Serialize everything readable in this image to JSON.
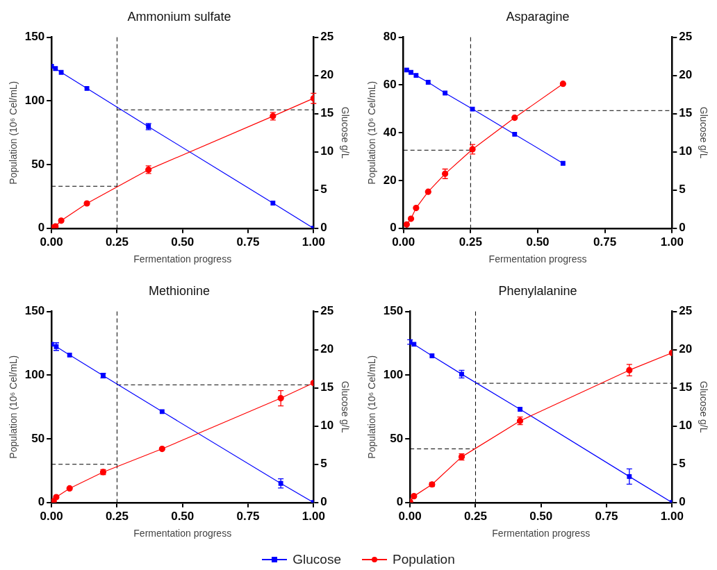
{
  "chart_data": [
    {
      "type": "line",
      "title": "Ammonium sulfate",
      "xlabel": "Fermentation progress",
      "ylabel": "Population (10⁶ Cel/mL)",
      "y2label": "Glucose g/L",
      "xlim": [
        0,
        1
      ],
      "xticks": [
        {
          "value": 0,
          "label": "0.00"
        },
        {
          "value": 0.25,
          "label": "0.25"
        },
        {
          "value": 0.5,
          "label": "0.50"
        },
        {
          "value": 0.75,
          "label": "0.75"
        },
        {
          "value": 1,
          "label": "1.00"
        }
      ],
      "ylim": [
        0,
        150
      ],
      "yticks": [
        0,
        50,
        100,
        150
      ],
      "y2lim": [
        0,
        25
      ],
      "y2ticks": [
        0,
        5,
        10,
        15,
        20,
        25
      ],
      "grid": false,
      "legend": "bottom",
      "series": [
        {
          "name": "Glucose",
          "color": "#0000ff",
          "axis": "y2",
          "marker": "square",
          "x": [
            0,
            0.015,
            0.037,
            0.135,
            0.37,
            0.845,
            1
          ],
          "values": [
            21.2,
            20.9,
            20.4,
            18.3,
            13.3,
            3.3,
            0
          ],
          "errors": [
            null,
            null,
            null,
            null,
            0.4,
            null,
            null
          ]
        },
        {
          "name": "Population",
          "color": "#ff0000",
          "axis": "y",
          "marker": "circle",
          "x": [
            0,
            0.015,
            0.037,
            0.135,
            0.37,
            0.845,
            1
          ],
          "values": [
            0.5,
            1.5,
            6,
            19.5,
            46,
            88,
            102
          ],
          "errors": [
            null,
            null,
            null,
            null,
            3,
            3,
            4
          ]
        }
      ],
      "ref_lines": [
        {
          "axis": "x",
          "value": 0.25
        },
        {
          "axis": "y",
          "value": 33
        },
        {
          "axis": "y2",
          "value": 15.5
        }
      ]
    },
    {
      "type": "line",
      "title": "Asparagine",
      "xlabel": "Fermentation progress",
      "ylabel": "Population (10⁶ Cel/mL)",
      "y2label": "Glucose g/L",
      "xlim": [
        0,
        1
      ],
      "xticks": [
        {
          "value": 0,
          "label": "0.00"
        },
        {
          "value": 0.25,
          "label": "0.25"
        },
        {
          "value": 0.5,
          "label": "0.50"
        },
        {
          "value": 0.75,
          "label": "0.75"
        },
        {
          "value": 1,
          "label": "1.00"
        }
      ],
      "ylim": [
        0,
        80
      ],
      "yticks": [
        0,
        20,
        40,
        60,
        80
      ],
      "y2lim": [
        0,
        25
      ],
      "y2ticks": [
        0,
        5,
        10,
        15,
        20,
        25
      ],
      "grid": false,
      "series": [
        {
          "color": "#0000ff",
          "axis": "y2",
          "marker": "square",
          "x": [
            0.012,
            0.028,
            0.047,
            0.092,
            0.155,
            0.257,
            0.414,
            0.594
          ],
          "values": [
            20.7,
            20.4,
            20,
            19.1,
            17.7,
            15.6,
            12.3,
            8.5
          ]
        },
        {
          "color": "#ff0000",
          "axis": "y",
          "marker": "circle",
          "x": [
            0.012,
            0.028,
            0.047,
            0.092,
            0.155,
            0.257,
            0.414,
            0.594
          ],
          "values": [
            1.6,
            4,
            8.5,
            15.3,
            22.8,
            33.1,
            46.3,
            60.5
          ],
          "errors": [
            null,
            null,
            null,
            null,
            2,
            2,
            null,
            null
          ]
        }
      ],
      "ref_lines": [
        {
          "axis": "x",
          "value": 0.25
        },
        {
          "axis": "y",
          "value": 32.7
        },
        {
          "axis": "y2",
          "value": 15.4
        }
      ]
    },
    {
      "type": "line",
      "title": "Methionine",
      "xlabel": "Fermentation progress",
      "ylabel": "Population (10⁶ Cel/mL)",
      "y2label": "Glucose g/L",
      "xlim": [
        0,
        1
      ],
      "xticks": [
        {
          "value": 0,
          "label": "0.00"
        },
        {
          "value": 0.25,
          "label": "0.25"
        },
        {
          "value": 0.5,
          "label": "0.50"
        },
        {
          "value": 0.75,
          "label": "0.75"
        },
        {
          "value": 1,
          "label": "1.00"
        }
      ],
      "ylim": [
        0,
        150
      ],
      "yticks": [
        0,
        50,
        100,
        150
      ],
      "y2lim": [
        0,
        25
      ],
      "y2ticks": [
        0,
        5,
        10,
        15,
        20,
        25
      ],
      "grid": false,
      "series": [
        {
          "color": "#0000ff",
          "axis": "y2",
          "marker": "square",
          "x": [
            0,
            0.018,
            0.069,
            0.197,
            0.422,
            0.875,
            1
          ],
          "values": [
            20.7,
            20.4,
            19.3,
            16.6,
            11.9,
            2.5,
            0
          ],
          "errors": [
            null,
            0.5,
            null,
            0.3,
            null,
            0.6,
            null
          ]
        },
        {
          "color": "#ff0000",
          "axis": "y",
          "marker": "circle",
          "x": [
            0,
            0.008,
            0.018,
            0.069,
            0.197,
            0.422,
            0.875,
            1
          ],
          "values": [
            0.4,
            1,
            4.2,
            11.1,
            23.9,
            42.1,
            81.9,
            93.9
          ],
          "errors": [
            null,
            null,
            null,
            null,
            2,
            null,
            6,
            null
          ]
        }
      ],
      "ref_lines": [
        {
          "axis": "x",
          "value": 0.25
        },
        {
          "axis": "y",
          "value": 30
        },
        {
          "axis": "y2",
          "value": 15.4
        }
      ]
    },
    {
      "type": "line",
      "title": "Phenylalanine",
      "xlabel": "Fermentation progress",
      "ylabel": "Population (10⁶ Cel/mL)",
      "y2label": "Glucose g/L",
      "xlim": [
        0,
        1
      ],
      "xticks": [
        {
          "value": 0,
          "label": "0.00"
        },
        {
          "value": 0.25,
          "label": "0.25"
        },
        {
          "value": 0.5,
          "label": "0.50"
        },
        {
          "value": 0.75,
          "label": "0.75"
        },
        {
          "value": 1,
          "label": "1.00"
        }
      ],
      "ylim": [
        0,
        150
      ],
      "yticks": [
        0,
        50,
        100,
        150
      ],
      "y2lim": [
        0,
        25
      ],
      "y2ticks": [
        0,
        5,
        10,
        15,
        20,
        25
      ],
      "grid": false,
      "series": [
        {
          "color": "#0000ff",
          "axis": "y2",
          "marker": "square",
          "x": [
            0,
            0.015,
            0.084,
            0.197,
            0.42,
            0.837,
            1
          ],
          "values": [
            21.0,
            20.7,
            19.2,
            16.8,
            12.2,
            3.4,
            0
          ],
          "errors": [
            0.3,
            null,
            null,
            0.5,
            null,
            1,
            null
          ]
        },
        {
          "color": "#ff0000",
          "axis": "y",
          "marker": "circle",
          "x": [
            0,
            0.015,
            0.084,
            0.197,
            0.42,
            0.837,
            1
          ],
          "values": [
            0.6,
            5,
            14.2,
            35.8,
            64.1,
            103.9,
            117.5
          ],
          "errors": [
            null,
            null,
            1.5,
            2.5,
            3,
            4.5,
            null
          ]
        }
      ],
      "ref_lines": [
        {
          "axis": "x",
          "value": 0.25
        },
        {
          "axis": "y",
          "value": 42.1
        },
        {
          "axis": "y2",
          "value": 15.6
        }
      ]
    }
  ]
}
